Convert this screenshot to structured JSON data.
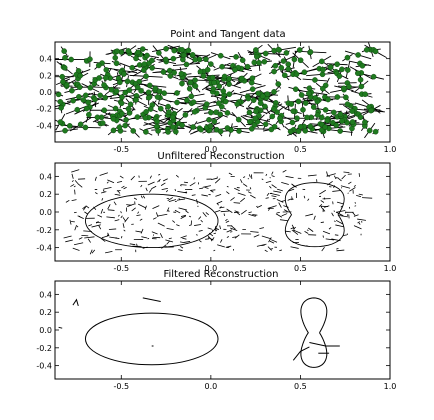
{
  "chart_data": [
    {
      "type": "scatter",
      "title": "Point and Tangent data",
      "xlabel": "",
      "ylabel": "",
      "xlim": [
        -0.87,
        1.0
      ],
      "ylim": [
        -0.6,
        0.6
      ],
      "xticks": [
        -0.5,
        0.0,
        0.5,
        1.0
      ],
      "yticks": [
        -0.4,
        -0.2,
        0.0,
        0.2,
        0.4
      ],
      "xtick_labels": [
        "-0.5",
        "0.0",
        "0.5",
        "1.0"
      ],
      "ytick_labels": [
        "-0.4",
        "-0.2",
        "0.0",
        "0.2",
        "0.4"
      ],
      "grid": false,
      "marker_color": "#1f7a1f",
      "line_color": "#000000",
      "points": {
        "x_range": [
          -0.85,
          0.92
        ],
        "y_range": [
          -0.48,
          0.52
        ]
      }
    },
    {
      "type": "line",
      "title": "Unfiltered Reconstruction",
      "xlabel": "",
      "ylabel": "",
      "xlim": [
        -0.87,
        1.0
      ],
      "ylim": [
        -0.55,
        0.55
      ],
      "xticks": [
        -0.5,
        0.0,
        0.5,
        1.0
      ],
      "yticks": [
        -0.4,
        -0.2,
        0.0,
        0.2,
        0.4
      ],
      "xtick_labels": [
        "-0.5",
        "0.0",
        "0.5",
        "1.0"
      ],
      "ytick_labels": [
        "-0.4",
        "-0.2",
        "0.0",
        "0.2",
        "0.4"
      ],
      "grid": false,
      "line_color": "#000000"
    },
    {
      "type": "line",
      "title": "Filtered Reconstruction",
      "xlabel": "",
      "ylabel": "",
      "xlim": [
        -0.87,
        1.0
      ],
      "ylim": [
        -0.55,
        0.55
      ],
      "xticks": [
        -0.5,
        0.0,
        0.5,
        1.0
      ],
      "yticks": [
        -0.4,
        -0.2,
        0.0,
        0.2,
        0.4
      ],
      "xtick_labels": [
        "-0.5",
        "0.0",
        "0.5",
        "1.0"
      ],
      "ytick_labels": [
        "-0.4",
        "-0.2",
        "0.0",
        "0.2",
        "0.4"
      ],
      "grid": false,
      "line_color": "#000000",
      "shapes": [
        {
          "name": "ellipse",
          "center": [
            -0.33,
            -0.1
          ],
          "radii": [
            0.37,
            0.29
          ]
        },
        {
          "name": "hourglass",
          "x_range": [
            0.45,
            0.7
          ],
          "y_range": [
            -0.42,
            0.36
          ]
        }
      ]
    }
  ]
}
